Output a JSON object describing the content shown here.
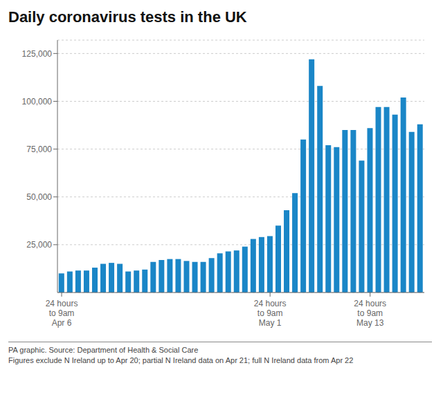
{
  "chart_data": {
    "type": "bar",
    "title": "Daily coronavirus tests in the UK",
    "categories": [
      "24 hours\nto 9am\nApr 6",
      null,
      null,
      null,
      null,
      null,
      null,
      null,
      null,
      null,
      null,
      null,
      null,
      null,
      null,
      null,
      null,
      null,
      null,
      null,
      null,
      null,
      null,
      null,
      null,
      "24 hours\nto 9am\nMay 1",
      null,
      null,
      null,
      null,
      null,
      null,
      null,
      null,
      null,
      null,
      null,
      "24 hours\nto 9am\nMay 13",
      null,
      null,
      null,
      null,
      null,
      null
    ],
    "values": [
      10000,
      11000,
      11500,
      11500,
      13000,
      15000,
      15500,
      15000,
      11000,
      11500,
      12000,
      16000,
      17000,
      17500,
      17500,
      16500,
      16000,
      16000,
      18000,
      20500,
      21500,
      22000,
      24000,
      28000,
      29000,
      29500,
      35000,
      43000,
      52000,
      80000,
      122000,
      108000,
      77000,
      76000,
      85000,
      85000,
      69000,
      86000,
      97000,
      97000,
      93000,
      102000,
      84000,
      88000
    ],
    "color": "#1a86c7",
    "ylim": [
      0,
      132000
    ],
    "yticks": [
      {
        "value": 25000,
        "label": "25,000"
      },
      {
        "value": 50000,
        "label": "50,000"
      },
      {
        "value": 75000,
        "label": "75,000"
      },
      {
        "value": 100000,
        "label": "100,000"
      },
      {
        "value": 125000,
        "label": "125,000"
      }
    ],
    "grid": true,
    "annotations": [
      "PA graphic. Source: Department of Health & Social Care",
      "Figures exclude N Ireland up to Apr 20; partial N Ireland data on Apr 21; full N Ireland data from Apr 22"
    ]
  }
}
